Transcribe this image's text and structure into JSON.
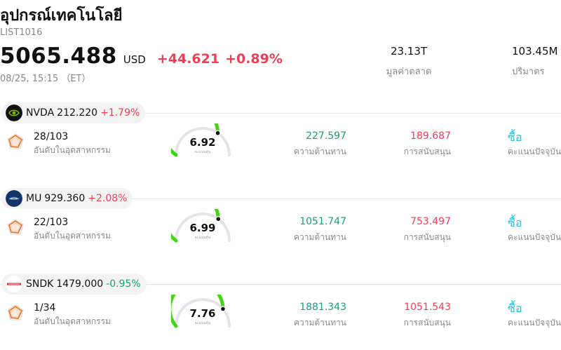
{
  "header": {
    "title": "อุปกรณ์เทคโนโลยี",
    "code": "LIST1016",
    "price": "5065.488",
    "currency": "USD",
    "change": "+44.621",
    "change_pct": "+0.89%",
    "timestamp": "08/25, 15:15 （ET）"
  },
  "stats": {
    "market_cap": {
      "value": "23.13T",
      "label": "มูลค่าตลาด"
    },
    "volume": {
      "value": "103.45M",
      "label": "ปริมาตร"
    }
  },
  "colors": {
    "up": "#f03e55",
    "down": "#1a9e7a",
    "gauge_fill": "#44d515",
    "gauge_track": "#e4e4ea",
    "rating": "#2ac0d8"
  },
  "stocks": [
    {
      "ticker": "NVDA",
      "price": "212.220",
      "change": "+1.79%",
      "direction": "up",
      "logo": "nvidia-logo",
      "rank": "28/103",
      "rank_label": "อันดับในอุตสาหกรรม",
      "score": "6.92",
      "score_label": "คะแนนหุ้น",
      "resistance": "227.597",
      "resistance_label": "ความต้านทาน",
      "support": "189.687",
      "support_label": "การสนับสนุน",
      "rating": "ซื้อ",
      "rating_label": "คะแนนปัจจุบัน"
    },
    {
      "ticker": "MU",
      "price": "929.360",
      "change": "+2.08%",
      "direction": "up",
      "logo": "micron-logo",
      "rank": "22/103",
      "rank_label": "อันดับในอุตสาหกรรม",
      "score": "6.99",
      "score_label": "คะแนนหุ้น",
      "resistance": "1051.747",
      "resistance_label": "ความต้านทาน",
      "support": "753.497",
      "support_label": "การสนับสนุน",
      "rating": "ซื้อ",
      "rating_label": "คะแนนปัจจุบัน"
    },
    {
      "ticker": "SNDK",
      "price": "1479.000",
      "change": "-0.95%",
      "direction": "down",
      "logo": "sandisk-logo",
      "rank": "1/34",
      "rank_label": "อันดับในอุตสาหกรรม",
      "score": "7.76",
      "score_label": "คะแนนหุ้น",
      "resistance": "1881.343",
      "resistance_label": "ความต้านทาน",
      "support": "1051.543",
      "support_label": "การสนับสนุน",
      "rating": "ซื้อ",
      "rating_label": "คะแนนปัจจุบัน"
    }
  ]
}
